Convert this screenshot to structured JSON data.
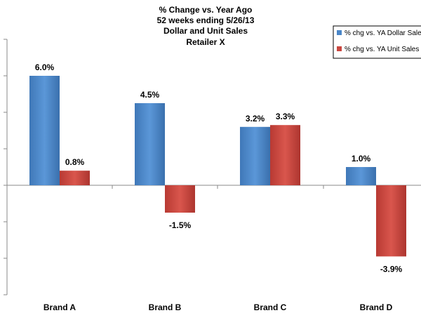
{
  "chart_data": {
    "type": "bar",
    "title": [
      "% Change vs. Year Ago",
      "52 weeks ending 5/26/13",
      "Dollar and Unit Sales",
      "Retailer X"
    ],
    "categories": [
      "Brand A",
      "Brand B",
      "Brand C",
      "Brand D"
    ],
    "series": [
      {
        "name": "% chg vs. YA Dollar Sales",
        "values": [
          6.0,
          4.5,
          3.2,
          1.0
        ],
        "labels": [
          "6.0%",
          "4.5%",
          "3.2%",
          "1.0%"
        ],
        "color": "#4a86c8"
      },
      {
        "name": "% chg vs. YA Unit Sales",
        "values": [
          0.8,
          -1.5,
          3.3,
          -3.9
        ],
        "labels": [
          "0.8%",
          "-1.5%",
          "3.3%",
          "-3.9%"
        ],
        "color": "#c9473f"
      }
    ],
    "ylim": [
      -6,
      8
    ],
    "legend_position": "top-right",
    "grid": false
  }
}
